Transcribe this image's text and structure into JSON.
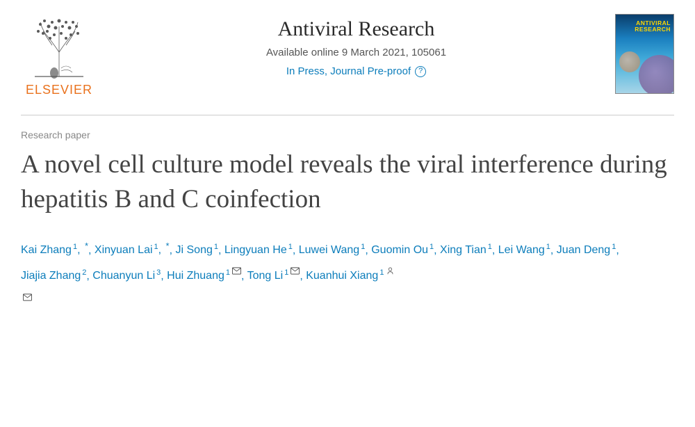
{
  "publisher": {
    "name": "ELSEVIER",
    "brand_color": "#e9711c"
  },
  "journal": {
    "title": "Antiviral Research",
    "availability": "Available online 9 March 2021, 105061",
    "press_status": "In Press, Journal Pre-proof",
    "cover_title": "ANTIVIRAL\nRESEARCH"
  },
  "article": {
    "type": "Research paper",
    "title": "A novel cell culture model reveals the viral interference during hepatitis B and C coinfection"
  },
  "authors": [
    {
      "name": "Kai Zhang",
      "affiliation": "1",
      "note": "*"
    },
    {
      "name": "Xinyuan Lai",
      "affiliation": "1",
      "note": "*"
    },
    {
      "name": "Ji Song",
      "affiliation": "1"
    },
    {
      "name": "Lingyuan He",
      "affiliation": "1"
    },
    {
      "name": "Luwei Wang",
      "affiliation": "1"
    },
    {
      "name": "Guomin Ou",
      "affiliation": "1"
    },
    {
      "name": "Xing Tian",
      "affiliation": "1"
    },
    {
      "name": "Lei Wang",
      "affiliation": "1"
    },
    {
      "name": "Juan Deng",
      "affiliation": "1"
    },
    {
      "name": "Jiajia Zhang",
      "affiliation": "2"
    },
    {
      "name": "Chuanyun Li",
      "affiliation": "3"
    },
    {
      "name": "Hui Zhuang",
      "affiliation": "1",
      "corresponding": true
    },
    {
      "name": "Tong Li",
      "affiliation": "1",
      "corresponding": true
    },
    {
      "name": "Kuanhui Xiang",
      "affiliation": "1",
      "person": true
    }
  ],
  "colors": {
    "link": "#0c7dbb",
    "title_text": "#444444",
    "meta_text": "#888888",
    "body_text": "#555555",
    "border": "#cccccc"
  }
}
